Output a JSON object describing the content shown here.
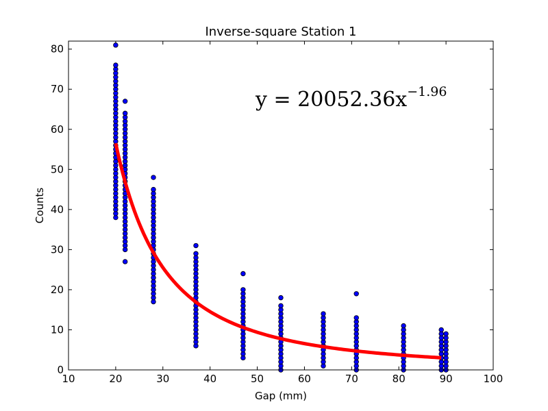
{
  "chart_data": {
    "type": "scatter",
    "title": "Inverse-square Station 1",
    "xlabel": "Gap (mm)",
    "ylabel": "Counts",
    "xlim": [
      10,
      100
    ],
    "ylim": [
      0,
      82
    ],
    "xticks": [
      10,
      20,
      30,
      40,
      50,
      60,
      70,
      80,
      90,
      100
    ],
    "yticks": [
      0,
      10,
      20,
      30,
      40,
      50,
      60,
      70,
      80
    ],
    "grid": false,
    "annotation": {
      "base": "y = 20052.36x",
      "exponent": "−1.96"
    },
    "fit": {
      "coefficient": 20052.36,
      "exponent": -1.96,
      "x_range": [
        20,
        89
      ],
      "color": "#ff0000"
    },
    "marker_color": "#0000ff",
    "series": [
      {
        "x": 20,
        "y": [
          38,
          39,
          40,
          41,
          42,
          43,
          44,
          45,
          46,
          47,
          48,
          49,
          50,
          51,
          52,
          53,
          54,
          55,
          56,
          57,
          58,
          59,
          60,
          61,
          62,
          63,
          64,
          65,
          66,
          67,
          68,
          69,
          70,
          71,
          72,
          73,
          74,
          75,
          76,
          81
        ]
      },
      {
        "x": 22,
        "y": [
          27,
          30,
          31,
          32,
          33,
          34,
          35,
          36,
          37,
          38,
          39,
          40,
          41,
          42,
          43,
          44,
          45,
          46,
          47,
          48,
          49,
          50,
          51,
          52,
          53,
          54,
          55,
          56,
          57,
          58,
          59,
          60,
          61,
          62,
          63,
          64,
          67
        ]
      },
      {
        "x": 28,
        "y": [
          17,
          18,
          19,
          20,
          21,
          22,
          23,
          24,
          25,
          26,
          27,
          28,
          29,
          30,
          31,
          32,
          33,
          34,
          35,
          36,
          37,
          38,
          39,
          40,
          41,
          42,
          43,
          44,
          45,
          48
        ]
      },
      {
        "x": 37,
        "y": [
          6,
          7,
          8,
          9,
          10,
          11,
          12,
          13,
          14,
          15,
          16,
          17,
          18,
          19,
          20,
          21,
          22,
          23,
          24,
          25,
          26,
          27,
          28,
          29,
          31
        ]
      },
      {
        "x": 47,
        "y": [
          3,
          4,
          5,
          6,
          7,
          8,
          9,
          10,
          11,
          12,
          13,
          14,
          15,
          16,
          17,
          18,
          19,
          20,
          24
        ]
      },
      {
        "x": 55,
        "y": [
          0,
          1,
          2,
          3,
          4,
          5,
          6,
          7,
          8,
          9,
          10,
          11,
          12,
          13,
          14,
          15,
          16,
          18
        ]
      },
      {
        "x": 64,
        "y": [
          1,
          2,
          3,
          4,
          5,
          6,
          7,
          8,
          9,
          10,
          11,
          12,
          13,
          14
        ]
      },
      {
        "x": 71,
        "y": [
          0,
          1,
          2,
          3,
          4,
          5,
          6,
          7,
          8,
          9,
          10,
          11,
          12,
          13,
          19
        ]
      },
      {
        "x": 81,
        "y": [
          0,
          1,
          2,
          3,
          4,
          5,
          6,
          7,
          8,
          9,
          10,
          11
        ]
      },
      {
        "x": 89,
        "y": [
          0,
          1,
          2,
          3,
          4,
          5,
          6,
          7,
          8,
          9,
          10
        ]
      },
      {
        "x": 90,
        "y": [
          0,
          1,
          2,
          3,
          4,
          5,
          6,
          7,
          8,
          9
        ]
      }
    ]
  }
}
